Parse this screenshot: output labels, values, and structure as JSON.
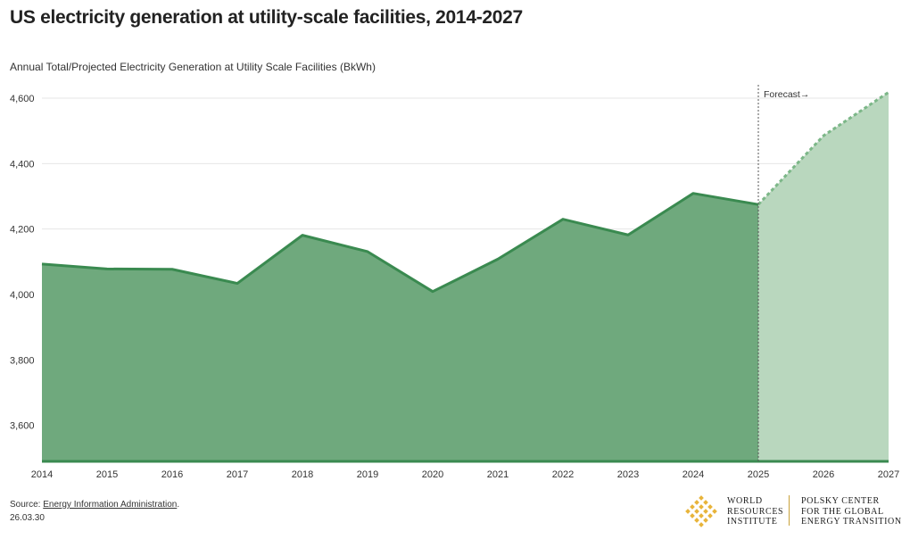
{
  "header": {
    "title": "US electricity generation at utility-scale facilities, 2014-2027",
    "subtitle": "Annual Total/Projected Electricity Generation at Utility Scale Facilities (BkWh)"
  },
  "footer": {
    "source_prefix": "Source: ",
    "source_link": "Energy Information Administration",
    "source_suffix": ".",
    "date": "26.03.30"
  },
  "logos": {
    "wri_text": "WORLD\nRESOURCES\nINSTITUTE",
    "polsky_text": "POLSKY CENTER\nFOR THE GLOBAL\nENERGY TRANSITION"
  },
  "colors": {
    "actual_fill": "#6fa97d",
    "actual_line": "#3a8a50",
    "forecast_fill": "#b9d7be",
    "forecast_line": "#7cb788",
    "logo_gold": "#e8b43a"
  },
  "chart_data": {
    "type": "area",
    "x": [
      2014,
      2015,
      2016,
      2017,
      2018,
      2019,
      2020,
      2021,
      2022,
      2023,
      2024,
      2025,
      2026,
      2027
    ],
    "xtick_labels": [
      "2014",
      "2015",
      "2016",
      "2017",
      "2018",
      "2019",
      "2020",
      "2021",
      "2022",
      "2023",
      "2024",
      "2025",
      "2026",
      "2027"
    ],
    "series": [
      {
        "kind": "actual",
        "x": [
          2014,
          2015,
          2016,
          2017,
          2018,
          2019,
          2020,
          2021,
          2022,
          2023,
          2024,
          2025
        ],
        "values": [
          4093,
          4078,
          4077,
          4034,
          4181,
          4131,
          4009,
          4108,
          4230,
          4182,
          4309,
          4275
        ]
      },
      {
        "kind": "forecast",
        "x": [
          2025,
          2026,
          2027
        ],
        "values": [
          4275,
          4485,
          4618
        ]
      }
    ],
    "ylim": [
      3490,
      4660
    ],
    "yticks": [
      3600,
      3800,
      4000,
      4200,
      4400,
      4600
    ],
    "ytick_labels": [
      "3,600",
      "3,800",
      "4,000",
      "4,200",
      "4,400",
      "4,600"
    ],
    "annotation": {
      "text": "Forecast→",
      "x": 2025
    },
    "grid": true
  }
}
